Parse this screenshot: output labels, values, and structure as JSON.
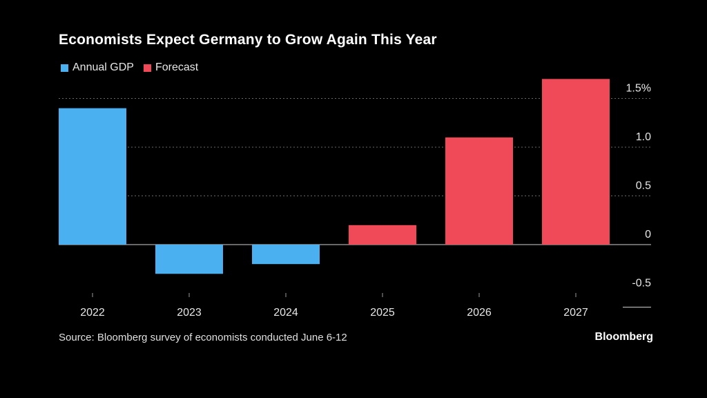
{
  "chart_data": {
    "type": "bar",
    "title": "Economists Expect Germany to Grow Again This Year",
    "categories": [
      "2022",
      "2023",
      "2024",
      "2025",
      "2026",
      "2027"
    ],
    "series": [
      {
        "name": "Annual GDP",
        "color": "#4ab0f0",
        "values": [
          1.4,
          -0.3,
          -0.2,
          null,
          null,
          null
        ]
      },
      {
        "name": "Forecast",
        "color": "#f04a58",
        "values": [
          null,
          null,
          null,
          0.2,
          1.1,
          1.7
        ]
      }
    ],
    "y_ticks": [
      {
        "value": 1.5,
        "label": "1.5%"
      },
      {
        "value": 1.0,
        "label": "1.0"
      },
      {
        "value": 0.5,
        "label": "0.5"
      },
      {
        "value": 0,
        "label": "0"
      },
      {
        "value": -0.5,
        "label": "-0.5"
      }
    ],
    "ylim": [
      -0.5,
      1.7
    ],
    "y_axis_side": "right",
    "grid": true,
    "legend_position": "top-left"
  },
  "source": "Source: Bloomberg survey of economists conducted June 6-12",
  "brand": "Bloomberg"
}
